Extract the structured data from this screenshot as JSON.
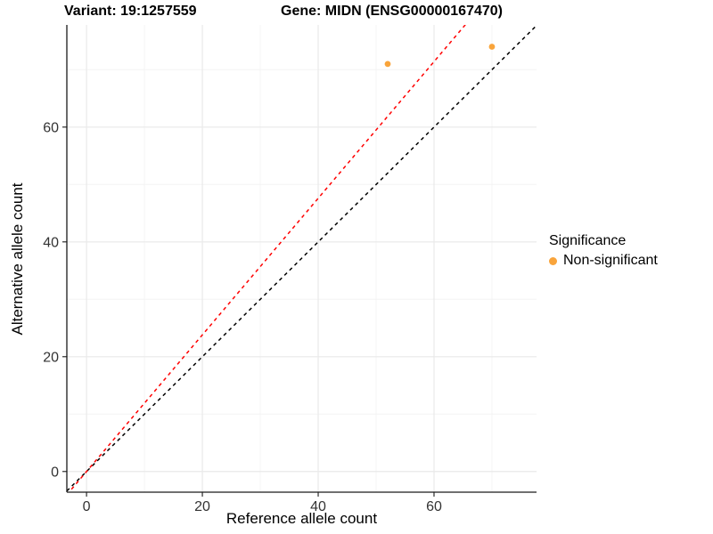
{
  "header": {
    "title_left": "Variant: 19:1257559",
    "title_right": "Gene: MIDN (ENSG00000167470)"
  },
  "chart_data": {
    "type": "scatter",
    "xlabel": "Reference allele count",
    "ylabel": "Alternative allele count",
    "xlim": [
      -3.4,
      77.7
    ],
    "ylim": [
      -3.6,
      77.8
    ],
    "xticks": [
      0,
      20,
      40,
      60
    ],
    "yticks": [
      0,
      20,
      40,
      60
    ],
    "minor_xticks": [
      10,
      30,
      50,
      70
    ],
    "minor_yticks": [
      10,
      30,
      50,
      70
    ],
    "grid": "major+minor",
    "legend_position": "right",
    "series": [
      {
        "name": "Non-significant",
        "color": "#F9A43B",
        "points": [
          {
            "x": 52,
            "y": 71
          },
          {
            "x": 70,
            "y": 74
          }
        ]
      }
    ],
    "reference_lines": [
      {
        "name": "identity-line",
        "slope": 1,
        "intercept": 0,
        "color": "#000000",
        "style": "dashed"
      },
      {
        "name": "expected-ratio-line",
        "slope": 1.19,
        "intercept": 0,
        "color": "#FF0000",
        "style": "dashed"
      }
    ],
    "legend": {
      "title": "Significance",
      "items": [
        {
          "label": "Non-significant",
          "color": "#F9A43B"
        }
      ]
    },
    "colors": {
      "grid_major": "#E9E9E9",
      "grid_minor": "#F4F4F4",
      "axis_line": "#1A1A1A",
      "tick_label": "#333333"
    }
  }
}
